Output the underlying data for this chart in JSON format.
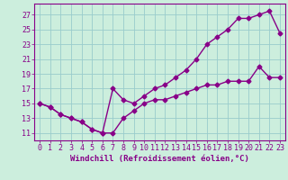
{
  "line1_x": [
    0,
    1,
    2,
    3,
    4,
    5,
    6,
    7,
    8,
    9,
    10,
    11,
    12,
    13,
    14,
    15,
    16,
    17,
    18,
    19,
    20,
    21,
    22,
    23
  ],
  "line1_y": [
    15,
    14.5,
    13.5,
    13,
    12.5,
    11.5,
    11.0,
    17.0,
    15.5,
    15.0,
    16.0,
    17.0,
    17.5,
    18.5,
    19.5,
    21.0,
    23.0,
    24.0,
    25.0,
    26.5,
    26.5,
    27.0,
    27.5,
    24.5
  ],
  "line2_x": [
    0,
    1,
    2,
    3,
    4,
    5,
    6,
    7,
    8,
    9,
    10,
    11,
    12,
    13,
    14,
    15,
    16,
    17,
    18,
    19,
    20,
    21,
    22,
    23
  ],
  "line2_y": [
    15.0,
    14.5,
    13.5,
    13.0,
    12.5,
    11.5,
    11.0,
    11.0,
    13.0,
    14.0,
    15.0,
    15.5,
    15.5,
    16.0,
    16.5,
    17.0,
    17.5,
    17.5,
    18.0,
    18.0,
    18.0,
    20.0,
    18.5,
    18.5
  ],
  "xlim": [
    -0.5,
    23.5
  ],
  "ylim": [
    10.0,
    28.5
  ],
  "yticks": [
    11,
    13,
    15,
    17,
    19,
    21,
    23,
    25,
    27
  ],
  "xticks": [
    0,
    1,
    2,
    3,
    4,
    5,
    6,
    7,
    8,
    9,
    10,
    11,
    12,
    13,
    14,
    15,
    16,
    17,
    18,
    19,
    20,
    21,
    22,
    23
  ],
  "xlabel": "Windchill (Refroidissement éolien,°C)",
  "line_color": "#880088",
  "bg_color": "#cceedd",
  "grid_color": "#99cccc",
  "marker": "D",
  "marker_size": 2.5,
  "linewidth": 1.0,
  "xlabel_fontsize": 6.5,
  "tick_fontsize": 6.0
}
